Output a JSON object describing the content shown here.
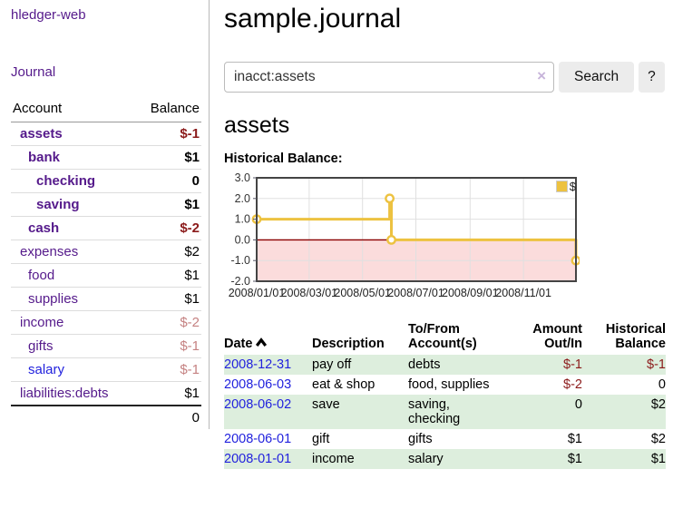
{
  "sidebar": {
    "app_title": "hledger-web",
    "journal_link": "Journal",
    "accounts_header": {
      "account": "Account",
      "balance": "Balance"
    },
    "accounts": [
      {
        "name": "assets",
        "depth": 1,
        "bold": true,
        "balance": "$-1",
        "neg": "strong"
      },
      {
        "name": "bank",
        "depth": 2,
        "bold": true,
        "balance": "$1"
      },
      {
        "name": "checking",
        "depth": 3,
        "bold": true,
        "balance": "0"
      },
      {
        "name": "saving",
        "depth": 3,
        "bold": true,
        "balance": "$1"
      },
      {
        "name": "cash",
        "depth": 2,
        "bold": true,
        "balance": "$-2",
        "neg": "strong"
      },
      {
        "name": "expenses",
        "depth": 1,
        "bold": false,
        "balance": "$2"
      },
      {
        "name": "food",
        "depth": 2,
        "bold": false,
        "balance": "$1"
      },
      {
        "name": "supplies",
        "depth": 2,
        "bold": false,
        "balance": "$1"
      },
      {
        "name": "income",
        "depth": 1,
        "bold": false,
        "balance": "$-2",
        "neg": "soft"
      },
      {
        "name": "gifts",
        "depth": 2,
        "bold": false,
        "balance": "$-1",
        "neg": "soft"
      },
      {
        "name": "salary",
        "depth": 2,
        "bold": false,
        "balance": "$-1",
        "neg": "soft",
        "unvisited": true
      },
      {
        "name": "liabilities:debts",
        "depth": 1,
        "bold": false,
        "balance": "$1"
      }
    ],
    "total": "0"
  },
  "main": {
    "title": "sample.journal",
    "search": {
      "value": "inacct:assets",
      "clear_icon": "×",
      "button_label": "Search",
      "help_label": "?"
    },
    "account_heading": "assets",
    "chart_label": "Historical Balance:"
  },
  "chart_data": {
    "type": "line",
    "step": true,
    "title": "Historical Balance",
    "series": [
      {
        "name": "$",
        "color": "#edc240",
        "points_day_value": [
          [
            0,
            1
          ],
          [
            152,
            2
          ],
          [
            154,
            0
          ],
          [
            365,
            -1
          ]
        ],
        "points_date_value": [
          [
            "2008-01-01",
            1
          ],
          [
            "2008-06-01",
            2
          ],
          [
            "2008-06-03",
            0
          ],
          [
            "2008-12-31",
            -1
          ]
        ]
      }
    ],
    "x_tick_days": [
      0,
      60,
      121,
      182,
      244,
      305
    ],
    "x_tick_labels": [
      "2008/01/01",
      "2008/03/01",
      "2008/05/01",
      "2008/07/01",
      "2008/09/01",
      "2008/11/01"
    ],
    "y_ticks": [
      3.0,
      2.0,
      1.0,
      0.0,
      -1.0,
      -2.0
    ],
    "xlim": [
      0,
      365
    ],
    "ylim": [
      -2,
      3
    ],
    "legend": "$",
    "legend_position": "top-right",
    "grid": true,
    "colors": {
      "line": "#edc240",
      "negative_fill": "#fbdcdc",
      "zero_line": "#8b0000",
      "grid": "#e0e0e0",
      "border": "#444444"
    }
  },
  "register": {
    "headers": {
      "date": "Date",
      "description": "Description",
      "tofrom": "To/From\nAccount(s)",
      "amount": "Amount\nOut/In",
      "balance": "Historical\nBalance"
    },
    "rows": [
      {
        "date": "2008-12-31",
        "description": "pay off",
        "accounts": "debts",
        "amount": "$-1",
        "amount_neg": true,
        "balance": "$-1",
        "balance_neg": true,
        "shaded": true
      },
      {
        "date": "2008-06-03",
        "description": "eat & shop",
        "accounts": "food, supplies",
        "amount": "$-2",
        "amount_neg": true,
        "balance": "0",
        "balance_neg": false,
        "shaded": false
      },
      {
        "date": "2008-06-02",
        "description": "save",
        "accounts": "saving,\nchecking",
        "amount": "0",
        "amount_neg": false,
        "balance": "$2",
        "balance_neg": false,
        "shaded": true
      },
      {
        "date": "2008-06-01",
        "description": "gift",
        "accounts": "gifts",
        "amount": "$1",
        "amount_neg": false,
        "balance": "$2",
        "balance_neg": false,
        "shaded": false
      },
      {
        "date": "2008-01-01",
        "description": "income",
        "accounts": "salary",
        "amount": "$1",
        "amount_neg": false,
        "balance": "$1",
        "balance_neg": false,
        "shaded": true
      }
    ]
  }
}
